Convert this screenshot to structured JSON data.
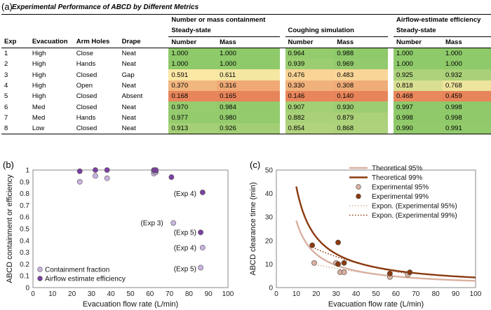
{
  "panel_labels": {
    "a": "(a)",
    "b": "(b)",
    "c": "(c)"
  },
  "table": {
    "title": "Experimental Performance of ABCD by Different Metrics",
    "group_headers": {
      "containment": "Number or mass containment",
      "airflow": "Airflow-estimate efficiency"
    },
    "sub_headers": {
      "steady1": "Steady-state",
      "coughing": "Coughing simulation",
      "steady2": "Steady-state"
    },
    "columns": [
      "Exp",
      "Evacuation",
      "Arm Holes",
      "Drape",
      "Number",
      "Mass",
      "Number",
      "Mass",
      "Number",
      "Mass"
    ],
    "rows": [
      [
        "1",
        "High",
        "Close",
        "Neat",
        "1.000",
        "1.000",
        "0.964",
        "0.988",
        "1.000",
        "1.000"
      ],
      [
        "2",
        "High",
        "Hands",
        "Neat",
        "1.000",
        "1.000",
        "0.939",
        "0.969",
        "1.000",
        "1.000"
      ],
      [
        "3",
        "High",
        "Closed",
        "Gap",
        "0.591",
        "0.611",
        "0.476",
        "0.483",
        "0.925",
        "0.932"
      ],
      [
        "4",
        "High",
        "Open",
        "Neat",
        "0.370",
        "0.316",
        "0.330",
        "0.308",
        "0.818",
        "0.768"
      ],
      [
        "5",
        "High",
        "Closed",
        "Absent",
        "0.168",
        "0.165",
        "0.146",
        "0.140",
        "0.468",
        "0.459"
      ],
      [
        "6",
        "Med",
        "Closed",
        "Neat",
        "0.970",
        "0.984",
        "0.907",
        "0.930",
        "0.997",
        "0.998"
      ],
      [
        "7",
        "Med",
        "Hands",
        "Neat",
        "0.977",
        "0.980",
        "0.882",
        "0.879",
        "0.998",
        "0.998"
      ],
      [
        "8",
        "Low",
        "Closed",
        "Neat",
        "0.913",
        "0.926",
        "0.854",
        "0.868",
        "0.990",
        "0.991"
      ]
    ],
    "scale_colors": {
      "low": "#e8845a",
      "mid": "#fde9a6",
      "high": "#8ec96a"
    }
  },
  "chart_data": [
    {
      "type": "scatter",
      "panel": "b",
      "xlabel": "Evacuation flow rate (L/min)",
      "ylabel": "ABCD containment or efficiency",
      "xlim": [
        0,
        100
      ],
      "ylim": [
        0,
        1
      ],
      "xticks": [
        "0",
        "10",
        "20",
        "30",
        "40",
        "50",
        "60",
        "70",
        "80",
        "90",
        "100"
      ],
      "yticks": [
        "0",
        "0.1",
        "0.2",
        "0.3",
        "0.4",
        "0.5",
        "0.6",
        "0.7",
        "0.8",
        "0.9",
        "1"
      ],
      "legend_position": "bottom-left",
      "series": [
        {
          "name": "Containment fraction",
          "color": "#c9b3df",
          "points": [
            [
              24,
              0.9
            ],
            [
              32,
              0.95
            ],
            [
              38,
              0.93
            ],
            [
              62,
              0.97
            ],
            [
              62,
              0.99
            ],
            [
              63,
              0.98
            ],
            [
              72,
              0.55
            ],
            [
              86,
              0.17
            ],
            [
              87,
              0.34
            ]
          ]
        },
        {
          "name": "Airflow estimate efficiency",
          "color": "#7b3fa0",
          "points": [
            [
              24,
              0.99
            ],
            [
              32,
              1.0
            ],
            [
              38,
              1.0
            ],
            [
              62,
              1.0
            ],
            [
              63,
              0.995
            ],
            [
              63,
              1.0
            ],
            [
              71,
              0.94
            ],
            [
              86,
              0.47
            ],
            [
              87,
              0.81
            ]
          ]
        }
      ],
      "annotations": [
        {
          "text": "(Exp 4)",
          "x": 78,
          "y": 0.8
        },
        {
          "text": "(Exp 3)",
          "x": 61,
          "y": 0.55
        },
        {
          "text": "(Exp 5)",
          "x": 78,
          "y": 0.47
        },
        {
          "text": "(Exp 4)",
          "x": 78,
          "y": 0.34
        },
        {
          "text": "(Exp 5)",
          "x": 78,
          "y": 0.16
        }
      ]
    },
    {
      "type": "line",
      "panel": "c",
      "xlabel": "Evacuation flow rate (L/min)",
      "ylabel": "ABCD clearance time (min)",
      "xlim": [
        0,
        100
      ],
      "ylim": [
        0,
        50
      ],
      "xticks": [
        "0",
        "10",
        "20",
        "30",
        "40",
        "50",
        "60",
        "70",
        "80",
        "90",
        "100"
      ],
      "yticks": [
        "0",
        "10",
        "20",
        "30",
        "40",
        "50"
      ],
      "legend_position": "top-right",
      "series": [
        {
          "name": "Theoretical 95%",
          "style": "line-light",
          "color": "#d9b0a0",
          "k": 285,
          "x_range": [
            10,
            100
          ]
        },
        {
          "name": "Theoretical 99%",
          "style": "line-dark",
          "color": "#8b3a10",
          "k": 430,
          "x_range": [
            10,
            100
          ]
        },
        {
          "name": "Experimental 95%",
          "style": "marker-light",
          "color": "#d9b0a0",
          "points": [
            [
              19,
              10.5
            ],
            [
              30,
              10.5
            ],
            [
              32,
              6.5
            ],
            [
              34,
              6.5
            ],
            [
              57,
              4.5
            ],
            [
              66,
              5.5
            ]
          ]
        },
        {
          "name": "Experimental 99%",
          "style": "marker-dark",
          "color": "#8b3a10",
          "points": [
            [
              18,
              18.0
            ],
            [
              31,
              19.2
            ],
            [
              31,
              10.0
            ],
            [
              34,
              10.5
            ],
            [
              57,
              6.0
            ],
            [
              67,
              6.5
            ]
          ]
        },
        {
          "name": "Expon. (Experimental 95%)",
          "style": "dotted-light",
          "color": "#d9b0a0",
          "a": 14.0,
          "b": 0.018,
          "x_range": [
            18,
            67
          ]
        },
        {
          "name": "Expon. (Experimental 99%)",
          "style": "dotted-dark",
          "color": "#8b3a10",
          "a": 25.5,
          "b": 0.022,
          "x_range": [
            18,
            67
          ]
        }
      ]
    }
  ]
}
